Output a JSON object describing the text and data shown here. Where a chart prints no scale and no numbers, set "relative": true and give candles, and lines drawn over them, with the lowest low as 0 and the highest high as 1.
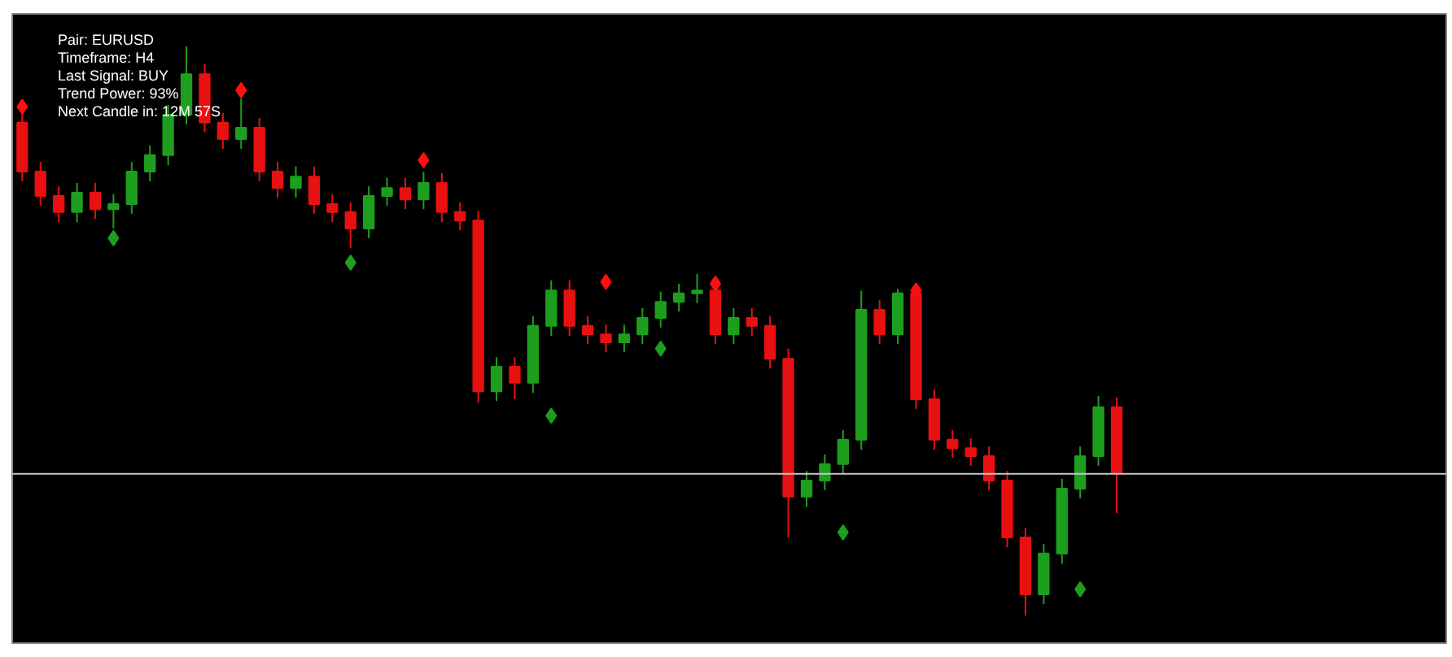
{
  "chart_data": {
    "type": "candlestick",
    "relative": true,
    "grid": false,
    "annotations": [
      "Pair: EURUSD",
      "Timeframe: H4",
      "Last Signal: BUY",
      "Trend Power: 93%",
      "Next Candle in: 12M 57S"
    ],
    "categories": [
      null,
      null,
      null,
      null,
      null,
      null,
      null,
      null,
      null,
      null,
      null,
      null,
      null,
      null,
      null,
      null,
      null,
      null,
      null,
      null,
      null,
      null,
      null,
      null,
      null,
      null,
      null,
      null,
      null,
      null,
      null,
      null,
      null,
      null,
      null,
      null,
      null,
      null,
      null,
      null,
      null,
      null,
      null,
      null,
      null,
      null,
      null,
      null,
      null,
      null,
      null,
      null,
      null,
      null,
      null,
      null,
      null,
      null,
      null,
      null,
      null
    ],
    "ohlc": [
      [
        0.866,
        0.883,
        0.763,
        0.78
      ],
      [
        0.78,
        0.797,
        0.72,
        0.737
      ],
      [
        0.737,
        0.754,
        0.691,
        0.709
      ],
      [
        0.709,
        0.76,
        0.691,
        0.743
      ],
      [
        0.743,
        0.76,
        0.697,
        0.714
      ],
      [
        0.714,
        0.74,
        0.68,
        0.723
      ],
      [
        0.723,
        0.797,
        0.706,
        0.78
      ],
      [
        0.78,
        0.826,
        0.763,
        0.809
      ],
      [
        0.809,
        0.897,
        0.791,
        0.88
      ],
      [
        0.88,
        1,
        0.863,
        0.951
      ],
      [
        0.951,
        0.969,
        0.849,
        0.866
      ],
      [
        0.866,
        0.883,
        0.82,
        0.837
      ],
      [
        0.837,
        0.909,
        0.82,
        0.857
      ],
      [
        0.857,
        0.874,
        0.763,
        0.78
      ],
      [
        0.78,
        0.797,
        0.734,
        0.751
      ],
      [
        0.751,
        0.789,
        0.734,
        0.771
      ],
      [
        0.771,
        0.789,
        0.706,
        0.723
      ],
      [
        0.723,
        0.74,
        0.691,
        0.709
      ],
      [
        0.709,
        0.726,
        0.646,
        0.68
      ],
      [
        0.68,
        0.754,
        0.663,
        0.737
      ],
      [
        0.737,
        0.769,
        0.72,
        0.751
      ],
      [
        0.751,
        0.769,
        0.714,
        0.731
      ],
      [
        0.731,
        0.78,
        0.714,
        0.76
      ],
      [
        0.76,
        0.777,
        0.691,
        0.709
      ],
      [
        0.709,
        0.726,
        0.677,
        0.694
      ],
      [
        0.694,
        0.711,
        0.374,
        0.394
      ],
      [
        0.394,
        0.454,
        0.377,
        0.437
      ],
      [
        0.437,
        0.454,
        0.38,
        0.409
      ],
      [
        0.409,
        0.526,
        0.391,
        0.509
      ],
      [
        0.509,
        0.589,
        0.491,
        0.571
      ],
      [
        0.571,
        0.589,
        0.491,
        0.509
      ],
      [
        0.509,
        0.526,
        0.477,
        0.494
      ],
      [
        0.494,
        0.511,
        0.463,
        0.48
      ],
      [
        0.48,
        0.511,
        0.463,
        0.494
      ],
      [
        0.494,
        0.54,
        0.477,
        0.523
      ],
      [
        0.523,
        0.569,
        0.506,
        0.551
      ],
      [
        0.551,
        0.583,
        0.534,
        0.566
      ],
      [
        0.566,
        0.6,
        0.549,
        0.571
      ],
      [
        0.571,
        0.589,
        0.477,
        0.494
      ],
      [
        0.494,
        0.54,
        0.477,
        0.523
      ],
      [
        0.523,
        0.54,
        0.491,
        0.509
      ],
      [
        0.509,
        0.526,
        0.434,
        0.451
      ],
      [
        0.451,
        0.469,
        0.137,
        0.209
      ],
      [
        0.209,
        0.254,
        0.191,
        0.237
      ],
      [
        0.237,
        0.283,
        0.22,
        0.266
      ],
      [
        0.266,
        0.326,
        0.249,
        0.309
      ],
      [
        0.309,
        0.571,
        0.291,
        0.537
      ],
      [
        0.537,
        0.554,
        0.477,
        0.494
      ],
      [
        0.494,
        0.574,
        0.477,
        0.566
      ],
      [
        0.566,
        0.583,
        0.363,
        0.38
      ],
      [
        0.38,
        0.397,
        0.291,
        0.309
      ],
      [
        0.309,
        0.326,
        0.277,
        0.294
      ],
      [
        0.294,
        0.311,
        0.263,
        0.28
      ],
      [
        0.28,
        0.297,
        0.22,
        0.237
      ],
      [
        0.237,
        0.254,
        0.12,
        0.137
      ],
      [
        0.137,
        0.154,
        0,
        0.037
      ],
      [
        0.037,
        0.126,
        0.02,
        0.109
      ],
      [
        0.109,
        0.24,
        0.091,
        0.223
      ],
      [
        0.223,
        0.297,
        0.206,
        0.28
      ],
      [
        0.28,
        0.386,
        0.263,
        0.366
      ],
      [
        0.366,
        0.383,
        0.18,
        0.251
      ]
    ],
    "series": [
      {
        "type": "scatter",
        "marker": "diamond",
        "color": "#ff1010",
        "values": [
          0.894,
          null,
          null,
          null,
          null,
          null,
          null,
          null,
          null,
          null,
          null,
          null,
          0.923,
          null,
          null,
          null,
          null,
          null,
          null,
          null,
          null,
          null,
          0.8,
          null,
          null,
          null,
          null,
          null,
          null,
          null,
          null,
          null,
          0.586,
          null,
          null,
          null,
          null,
          null,
          0.583,
          null,
          null,
          null,
          null,
          null,
          null,
          null,
          null,
          null,
          null,
          0.571,
          null,
          null,
          null,
          null,
          null,
          null,
          null,
          null,
          null,
          null,
          null
        ]
      },
      {
        "type": "scatter",
        "marker": "diamond",
        "color": "#1e9e1e",
        "values": [
          null,
          null,
          null,
          null,
          null,
          0.663,
          null,
          null,
          null,
          null,
          null,
          null,
          null,
          null,
          null,
          null,
          null,
          null,
          0.62,
          null,
          null,
          null,
          null,
          null,
          null,
          null,
          null,
          null,
          null,
          0.351,
          null,
          null,
          null,
          null,
          null,
          0.469,
          null,
          null,
          null,
          null,
          null,
          null,
          null,
          null,
          null,
          0.146,
          null,
          null,
          null,
          null,
          null,
          null,
          null,
          null,
          null,
          null,
          null,
          null,
          0.046,
          null,
          null
        ]
      }
    ],
    "ref_lines": [
      {
        "axis": "y",
        "value": 0.249,
        "color": "#c8c8c8"
      }
    ]
  }
}
